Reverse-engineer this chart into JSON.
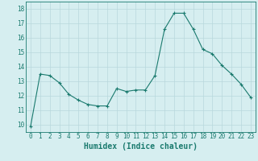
{
  "x": [
    0,
    1,
    2,
    3,
    4,
    5,
    6,
    7,
    8,
    9,
    10,
    11,
    12,
    13,
    14,
    15,
    16,
    17,
    18,
    19,
    20,
    21,
    22,
    23
  ],
  "y": [
    9.9,
    13.5,
    13.4,
    12.9,
    12.1,
    11.7,
    11.4,
    11.3,
    11.3,
    12.5,
    12.3,
    12.4,
    12.4,
    13.4,
    16.6,
    17.7,
    17.7,
    16.6,
    15.2,
    14.9,
    14.1,
    13.5,
    12.8,
    11.9
  ],
  "line_color": "#1a7a6e",
  "marker": "+",
  "marker_size": 3,
  "bg_color": "#d6eef0",
  "grid_color": "#b8d8dc",
  "xlabel": "Humidex (Indice chaleur)",
  "xlabel_fontsize": 7,
  "tick_fontsize": 5.5,
  "ylim": [
    9.5,
    18.5
  ],
  "yticks": [
    10,
    11,
    12,
    13,
    14,
    15,
    16,
    17,
    18
  ],
  "xticks": [
    0,
    1,
    2,
    3,
    4,
    5,
    6,
    7,
    8,
    9,
    10,
    11,
    12,
    13,
    14,
    15,
    16,
    17,
    18,
    19,
    20,
    21,
    22,
    23
  ]
}
